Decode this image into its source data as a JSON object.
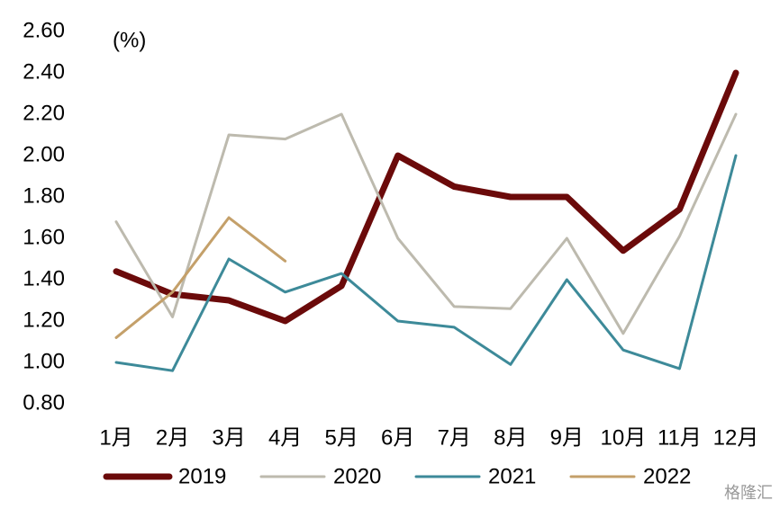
{
  "chart_data": {
    "type": "line",
    "annotation": "(%)",
    "watermark": "格隆汇",
    "categories": [
      "1月",
      "2月",
      "3月",
      "4月",
      "5月",
      "6月",
      "7月",
      "8月",
      "9月",
      "10月",
      "11月",
      "12月"
    ],
    "series": [
      {
        "name": "2019",
        "color": "#6b0a0a",
        "values": [
          1.44,
          1.33,
          1.3,
          1.2,
          1.37,
          2.0,
          1.85,
          1.8,
          1.8,
          1.54,
          1.74,
          2.4
        ]
      },
      {
        "name": "2020",
        "color": "#bdbaae",
        "values": [
          1.68,
          1.22,
          2.1,
          2.08,
          2.2,
          1.6,
          1.27,
          1.26,
          1.6,
          1.14,
          1.61,
          2.2
        ]
      },
      {
        "name": "2021",
        "color": "#3d8a99",
        "values": [
          1.0,
          0.96,
          1.5,
          1.34,
          1.43,
          1.2,
          1.17,
          0.99,
          1.4,
          1.06,
          0.97,
          2.0
        ]
      },
      {
        "name": "2022",
        "color": "#c4a06a",
        "values": [
          1.12,
          1.34,
          1.7,
          1.49,
          null,
          null,
          null,
          null,
          null,
          null,
          null,
          null
        ]
      }
    ],
    "ylim": [
      0.8,
      2.6
    ],
    "yticks": [
      {
        "value": 0.8,
        "label": "0.80"
      },
      {
        "value": 1.0,
        "label": "1.00"
      },
      {
        "value": 1.2,
        "label": "1.20"
      },
      {
        "value": 1.4,
        "label": "1.40"
      },
      {
        "value": 1.6,
        "label": "1.60"
      },
      {
        "value": 1.8,
        "label": "1.80"
      },
      {
        "value": 2.0,
        "label": "2.00"
      },
      {
        "value": 2.2,
        "label": "2.20"
      },
      {
        "value": 2.4,
        "label": "2.40"
      },
      {
        "value": 2.6,
        "label": "2.60"
      }
    ],
    "grid": false,
    "legend": "bottom"
  }
}
